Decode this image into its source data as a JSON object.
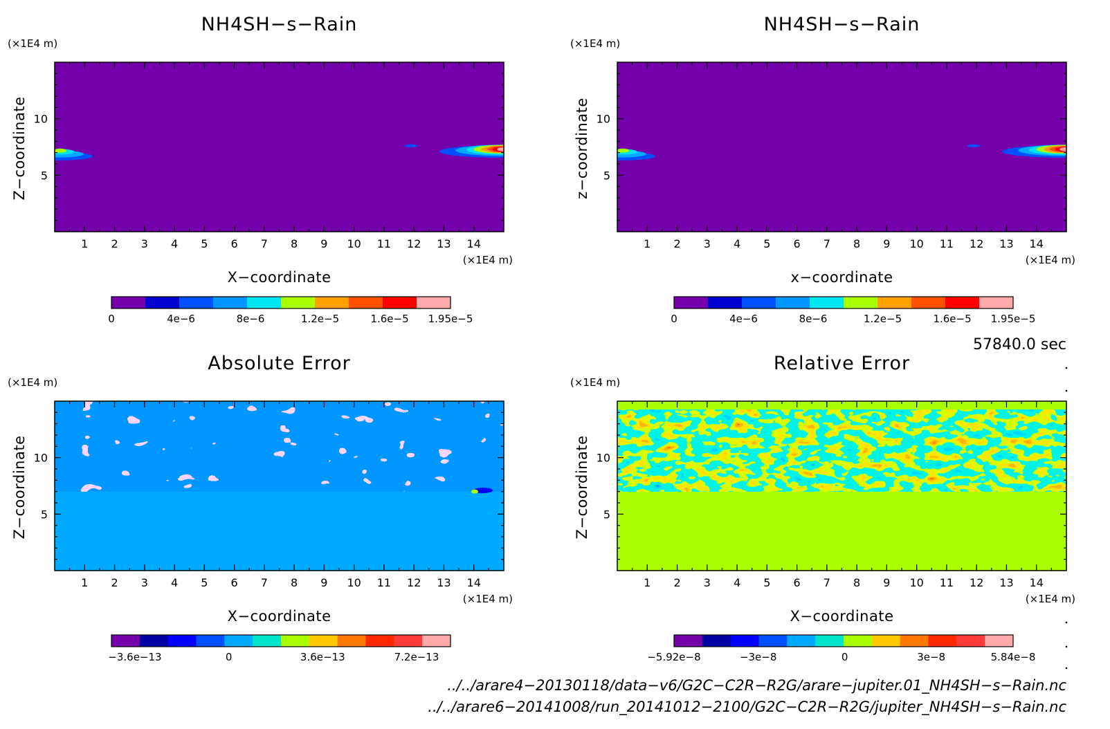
{
  "chart_data": [
    {
      "id": "p1",
      "type": "heatmap",
      "title": "NH4SH−s−Rain",
      "xlabel": "X−coordinate",
      "ylabel": "Z−coordinate",
      "x_unit": "(×1E4 m)",
      "y_unit": "(×1E4 m)",
      "xlim": [
        0,
        15
      ],
      "ylim": [
        0,
        15
      ],
      "x_ticks": [
        "1",
        "2",
        "3",
        "4",
        "5",
        "6",
        "7",
        "8",
        "9",
        "10",
        "11",
        "12",
        "13",
        "14"
      ],
      "y_ticks": [
        "5",
        "10"
      ],
      "background_level": "0",
      "pattern": "field near zero everywhere; small rain patches near z≈7 at x≈0–1 and x≈13.5–15, faint speck at x≈12",
      "colorbar": {
        "colors": [
          "#7300aa",
          "#0000d0",
          "#0050ff",
          "#0096ff",
          "#00e6f0",
          "#aaff00",
          "#ffa000",
          "#ff5000",
          "#ff0000",
          "#ffaaaa"
        ],
        "tick_labels": [
          "0",
          "4e−6",
          "8e−6",
          "1.2e−5",
          "1.6e−5",
          "1.95e−5"
        ],
        "tick_values": [
          0,
          4e-06,
          8e-06,
          1.2e-05,
          1.6e-05,
          1.95e-05
        ],
        "range": [
          0,
          1.95e-05
        ]
      }
    },
    {
      "id": "p2",
      "type": "heatmap",
      "title": "NH4SH−s−Rain",
      "xlabel": "x−coordinate",
      "ylabel": "z−coordinate",
      "x_unit": "(×1E4 m)",
      "y_unit": "(×1E4 m)",
      "xlim": [
        0,
        15
      ],
      "ylim": [
        0,
        15
      ],
      "x_ticks": [
        "1",
        "2",
        "3",
        "4",
        "5",
        "6",
        "7",
        "8",
        "9",
        "10",
        "11",
        "12",
        "13",
        "14"
      ],
      "y_ticks": [
        "5",
        "10"
      ],
      "background_level": "0",
      "pattern": "same structure as the first panel",
      "colorbar": {
        "colors": [
          "#7300aa",
          "#0000d0",
          "#0050ff",
          "#0096ff",
          "#00e6f0",
          "#aaff00",
          "#ffa000",
          "#ff5000",
          "#ff0000",
          "#ffaaaa"
        ],
        "tick_labels": [
          "0",
          "4e−6",
          "8e−6",
          "1.2e−5",
          "1.6e−5",
          "1.95e−5"
        ],
        "tick_values": [
          0,
          4e-06,
          8e-06,
          1.2e-05,
          1.6e-05,
          1.95e-05
        ],
        "range": [
          0,
          1.95e-05
        ]
      }
    },
    {
      "id": "p3",
      "type": "heatmap",
      "title": "Absolute Error",
      "xlabel": "X−coordinate",
      "ylabel": "Z−coordinate",
      "x_unit": "(×1E4 m)",
      "y_unit": "(×1E4 m)",
      "xlim": [
        0,
        15
      ],
      "ylim": [
        0,
        15
      ],
      "x_ticks": [
        "1",
        "2",
        "3",
        "4",
        "5",
        "6",
        "7",
        "8",
        "9",
        "10",
        "11",
        "12",
        "13",
        "14"
      ],
      "y_ticks": [
        "5",
        "10"
      ],
      "background_level": "0",
      "noisy_band_z": [
        7,
        15
      ],
      "colorbar": {
        "colors": [
          "#7300aa",
          "#0000a0",
          "#0000ff",
          "#0050ff",
          "#00aaff",
          "#00e6c8",
          "#aaff00",
          "#ffc800",
          "#ff7800",
          "#ff2800",
          "#ff3c3c",
          "#ffaaaa"
        ],
        "tick_labels": [
          "−3.6e−13",
          "0",
          "3.6e−13",
          "7.2e−13"
        ],
        "tick_values": [
          -3.6e-13,
          0,
          3.6e-13,
          7.2e-13
        ],
        "range": [
          -4.5e-13,
          8.5e-13
        ]
      }
    },
    {
      "id": "p4",
      "type": "heatmap",
      "title": "Relative Error",
      "xlabel": "X−coordinate",
      "ylabel": "Z−coordinate",
      "x_unit": "(×1E4 m)",
      "y_unit": "(×1E4 m)",
      "xlim": [
        0,
        15
      ],
      "ylim": [
        0,
        15
      ],
      "x_ticks": [
        "1",
        "2",
        "3",
        "4",
        "5",
        "6",
        "7",
        "8",
        "9",
        "10",
        "11",
        "12",
        "13",
        "14"
      ],
      "y_ticks": [
        "5",
        "10"
      ],
      "background_level": "0",
      "noisy_band_z": [
        7,
        15
      ],
      "colorbar": {
        "colors": [
          "#7300aa",
          "#0000a0",
          "#0000ff",
          "#0050ff",
          "#00aaff",
          "#00e6c8",
          "#aaff00",
          "#ffc800",
          "#ff7800",
          "#ff2800",
          "#ff3c3c",
          "#ffaaaa"
        ],
        "tick_labels": [
          "−5.92e−8",
          "−3e−8",
          "0",
          "3e−8",
          "5.84e−8"
        ],
        "tick_values": [
          -5.92e-08,
          -3e-08,
          0,
          3e-08,
          5.84e-08
        ],
        "range": [
          -5.92e-08,
          5.84e-08
        ]
      }
    }
  ],
  "time_label": "57840.0 sec",
  "files": [
    "../../arare4−20130118/data−v6/G2C−C2R−R2G/arare−jupiter.01_NH4SH−s−Rain.nc",
    "../../arare6−20141008/run_20141012−2100/G2C−C2R−R2G/jupiter_NH4SH−s−Rain.nc"
  ]
}
